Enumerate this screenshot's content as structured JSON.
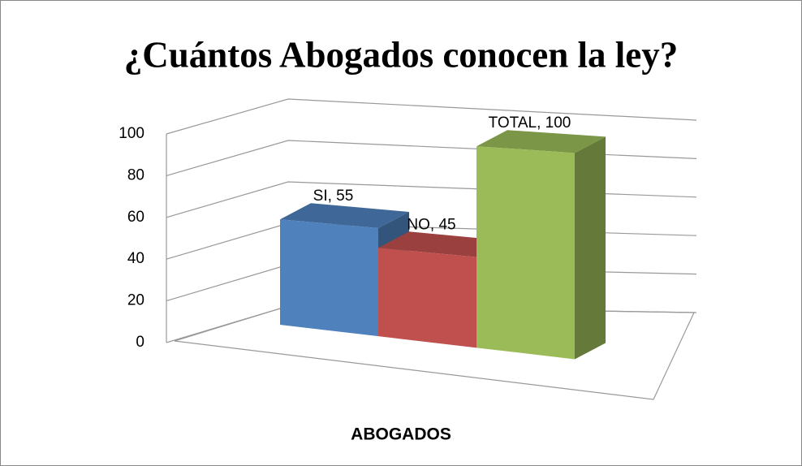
{
  "chart_data": {
    "type": "bar",
    "title": "¿Cuántos Abogados conocen la ley?",
    "categories": [
      "ABOGADOS"
    ],
    "series": [
      {
        "name": "SI",
        "color": "#4f81bd",
        "values": [
          55
        ],
        "value_labels": [
          "SI, 55"
        ]
      },
      {
        "name": "NO",
        "color": "#c0504d",
        "values": [
          45
        ],
        "value_labels": [
          "NO, 45"
        ]
      },
      {
        "name": "TOTAL",
        "color": "#9bbb59",
        "values": [
          100
        ],
        "value_labels": [
          "TOTAL, 100"
        ]
      }
    ],
    "ylim": [
      0,
      100
    ],
    "yticks": [
      0,
      20,
      40,
      60,
      80,
      100
    ],
    "grid": true
  }
}
